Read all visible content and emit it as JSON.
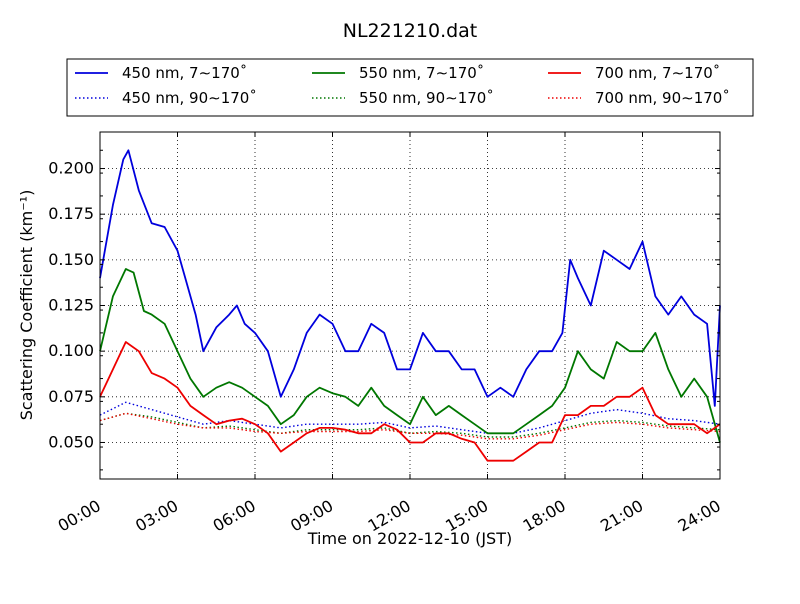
{
  "chart_data": {
    "type": "line",
    "title": "NL221210.dat",
    "xlabel": "Time on 2022-12-10 (JST)",
    "ylabel": "Scattering Coefficient (km⁻¹)",
    "xlim": [
      "00:00",
      "24:00"
    ],
    "ylim": [
      0.03,
      0.22
    ],
    "x_ticks": [
      "00:00",
      "03:00",
      "06:00",
      "09:00",
      "12:00",
      "15:00",
      "18:00",
      "21:00",
      "24:00"
    ],
    "y_ticks": [
      "0.050",
      "0.075",
      "0.100",
      "0.125",
      "0.150",
      "0.175",
      "0.200"
    ],
    "grid": true,
    "legend_position": "top",
    "x_unit": "hours",
    "series": [
      {
        "name": "450 nm, 7∼170˚",
        "color": "#0000dd",
        "style": "solid",
        "x": [
          0,
          0.5,
          0.9,
          1.1,
          1.5,
          2,
          2.5,
          3,
          3.3,
          3.7,
          4,
          4.5,
          5,
          5.3,
          5.6,
          6,
          6.5,
          7,
          7.5,
          8,
          8.5,
          9,
          9.5,
          10,
          10.5,
          11,
          11.5,
          12,
          12.5,
          13,
          13.5,
          14,
          14.5,
          15,
          15.5,
          16,
          16.5,
          17,
          17.5,
          17.9,
          18.2,
          18.5,
          19,
          19.5,
          20,
          20.5,
          21,
          21.5,
          22,
          22.5,
          23,
          23.5,
          23.8,
          24
        ],
        "y": [
          0.14,
          0.18,
          0.205,
          0.21,
          0.188,
          0.17,
          0.168,
          0.155,
          0.14,
          0.12,
          0.1,
          0.113,
          0.12,
          0.125,
          0.115,
          0.11,
          0.1,
          0.075,
          0.09,
          0.11,
          0.12,
          0.115,
          0.1,
          0.1,
          0.115,
          0.11,
          0.09,
          0.09,
          0.11,
          0.1,
          0.1,
          0.09,
          0.09,
          0.075,
          0.08,
          0.075,
          0.09,
          0.1,
          0.1,
          0.11,
          0.15,
          0.14,
          0.125,
          0.155,
          0.15,
          0.145,
          0.16,
          0.13,
          0.12,
          0.13,
          0.12,
          0.115,
          0.07,
          0.125
        ]
      },
      {
        "name": "450 nm, 90∼170˚",
        "color": "#0000dd",
        "style": "dotted",
        "x": [
          0,
          1,
          2,
          3,
          4,
          5,
          6,
          7,
          8,
          9,
          10,
          11,
          12,
          13,
          14,
          15,
          16,
          17,
          18,
          19,
          20,
          21,
          22,
          23,
          24
        ],
        "y": [
          0.065,
          0.072,
          0.068,
          0.064,
          0.06,
          0.062,
          0.06,
          0.058,
          0.06,
          0.06,
          0.06,
          0.061,
          0.058,
          0.059,
          0.057,
          0.055,
          0.055,
          0.058,
          0.062,
          0.066,
          0.068,
          0.066,
          0.063,
          0.062,
          0.06
        ]
      },
      {
        "name": "550 nm, 7∼170˚",
        "color": "#007700",
        "style": "solid",
        "x": [
          0,
          0.5,
          1,
          1.3,
          1.7,
          2,
          2.5,
          3,
          3.5,
          4,
          4.5,
          5,
          5.5,
          6,
          6.5,
          7,
          7.5,
          8,
          8.5,
          9,
          9.5,
          10,
          10.5,
          11,
          11.5,
          12,
          12.5,
          13,
          13.5,
          14,
          14.5,
          15,
          15.5,
          16,
          16.5,
          17,
          17.5,
          18,
          18.5,
          19,
          19.5,
          20,
          20.5,
          21,
          21.5,
          22,
          22.5,
          23,
          23.5,
          24
        ],
        "y": [
          0.1,
          0.13,
          0.145,
          0.143,
          0.122,
          0.12,
          0.115,
          0.1,
          0.085,
          0.075,
          0.08,
          0.083,
          0.08,
          0.075,
          0.07,
          0.06,
          0.065,
          0.075,
          0.08,
          0.077,
          0.075,
          0.07,
          0.08,
          0.07,
          0.065,
          0.06,
          0.075,
          0.065,
          0.07,
          0.065,
          0.06,
          0.055,
          0.055,
          0.055,
          0.06,
          0.065,
          0.07,
          0.08,
          0.1,
          0.09,
          0.085,
          0.105,
          0.1,
          0.1,
          0.11,
          0.09,
          0.075,
          0.085,
          0.075,
          0.05
        ]
      },
      {
        "name": "550 nm, 90∼170˚",
        "color": "#007700",
        "style": "dotted",
        "x": [
          0,
          1,
          2,
          3,
          4,
          5,
          6,
          7,
          8,
          9,
          10,
          11,
          12,
          13,
          14,
          15,
          16,
          17,
          18,
          19,
          20,
          21,
          22,
          23,
          24
        ],
        "y": [
          0.062,
          0.066,
          0.064,
          0.061,
          0.058,
          0.059,
          0.057,
          0.055,
          0.057,
          0.057,
          0.057,
          0.058,
          0.055,
          0.056,
          0.055,
          0.053,
          0.053,
          0.055,
          0.058,
          0.061,
          0.062,
          0.061,
          0.059,
          0.058,
          0.057
        ]
      },
      {
        "name": "700 nm, 7∼170˚",
        "color": "#ee0000",
        "style": "solid",
        "x": [
          0,
          0.5,
          1,
          1.5,
          2,
          2.5,
          3,
          3.5,
          4,
          4.5,
          5,
          5.5,
          6,
          6.5,
          7,
          7.5,
          8,
          8.5,
          9,
          9.5,
          10,
          10.5,
          11,
          11.5,
          12,
          12.5,
          13,
          13.5,
          14,
          14.5,
          15,
          15.5,
          16,
          16.5,
          17,
          17.5,
          18,
          18.5,
          19,
          19.5,
          20,
          20.5,
          21,
          21.5,
          22,
          22.5,
          23,
          23.5,
          24
        ],
        "y": [
          0.075,
          0.09,
          0.105,
          0.1,
          0.088,
          0.085,
          0.08,
          0.07,
          0.065,
          0.06,
          0.062,
          0.063,
          0.06,
          0.055,
          0.045,
          0.05,
          0.055,
          0.058,
          0.058,
          0.057,
          0.055,
          0.055,
          0.06,
          0.057,
          0.05,
          0.05,
          0.055,
          0.055,
          0.052,
          0.05,
          0.04,
          0.04,
          0.04,
          0.045,
          0.05,
          0.05,
          0.065,
          0.065,
          0.07,
          0.07,
          0.075,
          0.075,
          0.08,
          0.065,
          0.06,
          0.06,
          0.06,
          0.055,
          0.06
        ]
      },
      {
        "name": "700 nm, 90∼170˚",
        "color": "#ee0000",
        "style": "dotted",
        "x": [
          0,
          1,
          2,
          3,
          4,
          5,
          6,
          7,
          8,
          9,
          10,
          11,
          12,
          13,
          14,
          15,
          16,
          17,
          18,
          19,
          20,
          21,
          22,
          23,
          24
        ],
        "y": [
          0.062,
          0.066,
          0.063,
          0.06,
          0.058,
          0.058,
          0.056,
          0.055,
          0.056,
          0.056,
          0.056,
          0.057,
          0.055,
          0.055,
          0.054,
          0.052,
          0.052,
          0.054,
          0.057,
          0.06,
          0.061,
          0.06,
          0.058,
          0.057,
          0.056
        ]
      }
    ]
  }
}
